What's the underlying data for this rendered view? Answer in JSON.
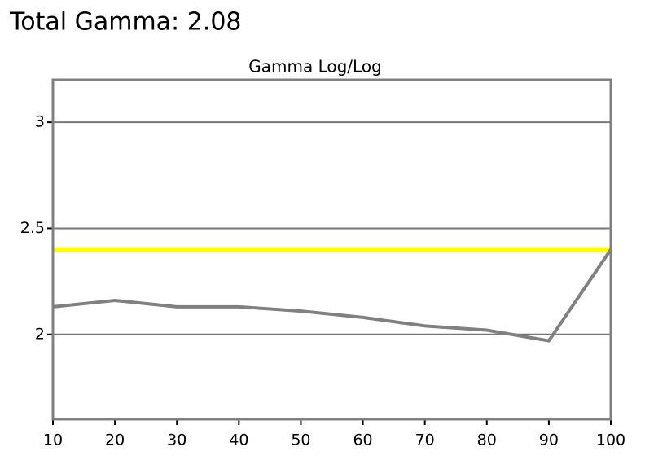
{
  "page_title": "Total Gamma: 2.08",
  "chart_data": {
    "type": "line",
    "title": "Gamma Log/Log",
    "x": [
      10,
      20,
      30,
      40,
      50,
      60,
      70,
      80,
      90,
      100
    ],
    "series": [
      {
        "color": "#808080",
        "values": [
          2.13,
          2.16,
          2.13,
          2.13,
          2.11,
          2.08,
          2.04,
          2.02,
          1.97,
          2.4
        ]
      }
    ],
    "reference_line": {
      "value": 2.4,
      "color": "#ffff00"
    },
    "xlim": [
      10,
      100
    ],
    "xticks": [
      10,
      20,
      30,
      40,
      50,
      60,
      70,
      80,
      90,
      100
    ],
    "ylim": [
      1.6,
      3.2
    ],
    "yticks": [
      2,
      2.5,
      3
    ],
    "grid": true
  }
}
